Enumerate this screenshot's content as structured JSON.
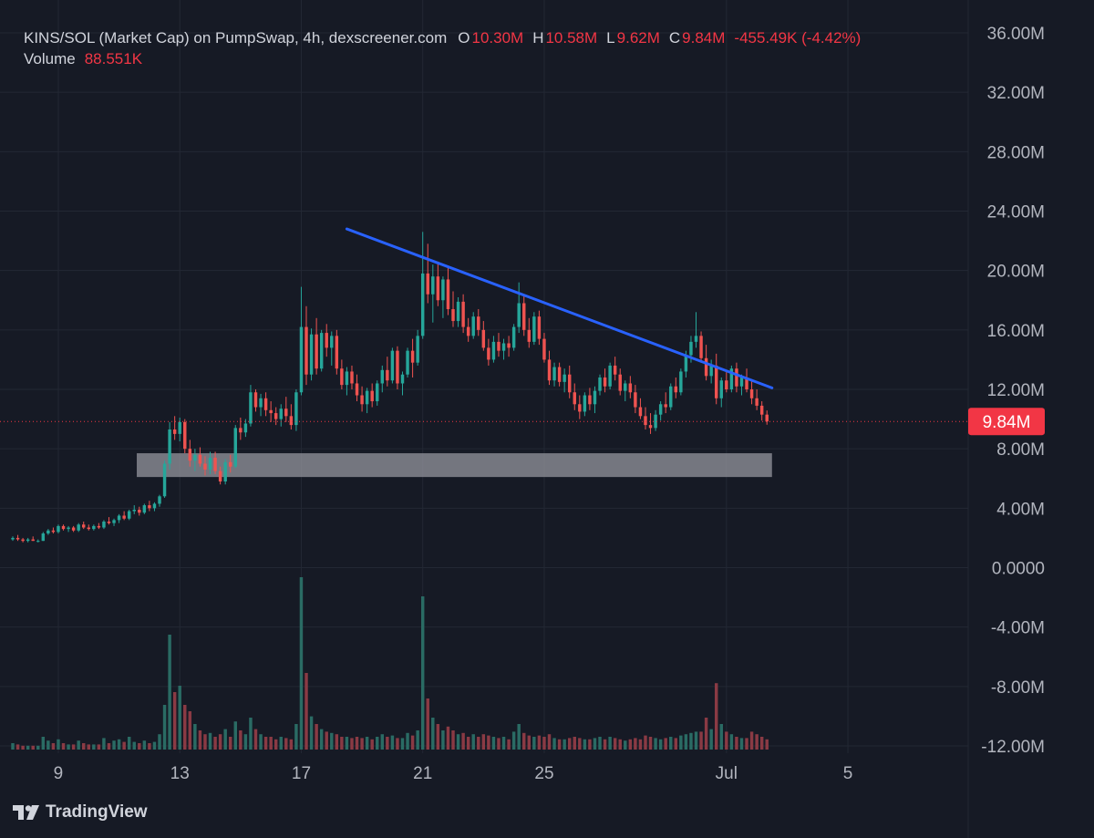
{
  "legend": {
    "pair": "KINS/SOL (Market Cap) on PumpSwap, 4h, dexscreener.com",
    "o_label": "O",
    "o_value": "10.30M",
    "h_label": "H",
    "h_value": "10.58M",
    "l_label": "L",
    "l_value": "9.62M",
    "c_label": "C",
    "c_value": "9.84M",
    "change": "-455.49K (-4.42%)",
    "volume_label": "Volume",
    "volume_value": "88.551K"
  },
  "brand": {
    "name": "TradingView",
    "logo_icon": "tradingview-logo-icon"
  },
  "colors": {
    "background": "#161a25",
    "grid": "#232834",
    "up": "#26a69a",
    "down": "#ef5350",
    "up_volume": "#2a6b64",
    "down_volume": "#8a3a44",
    "trendline": "#2962ff",
    "zone": "#8f9199",
    "last_price_badge": "#f23645",
    "axis_text": "#b2b5be"
  },
  "chart_data": {
    "type": "candlestick",
    "title": "KINS/SOL (Market Cap) on PumpSwap, 4h, dexscreener.com",
    "y_axis": {
      "range": [
        -12000000,
        36000000
      ],
      "tick_labels": [
        "36.00M",
        "32.00M",
        "28.00M",
        "24.00M",
        "20.00M",
        "16.00M",
        "12.00M",
        "8.00M",
        "4.00M",
        "0.0000",
        "-4.00M",
        "-8.00M",
        "-12.00M"
      ],
      "tick_values": [
        36,
        32,
        28,
        24,
        20,
        16,
        12,
        8,
        4,
        0,
        -4,
        -8,
        -12
      ],
      "unit": "M"
    },
    "x_axis": {
      "tick_labels": [
        "9",
        "13",
        "17",
        "21",
        "25",
        "Jul",
        "5"
      ],
      "tick_dates": [
        "2025-06-09",
        "2025-06-13",
        "2025-06-17",
        "2025-06-21",
        "2025-06-25",
        "2025-07-01",
        "2025-07-05"
      ],
      "range": [
        "2025-06-07T12:00",
        "2025-07-08T00:00"
      ]
    },
    "grid": true,
    "last_price": {
      "value": 9.84,
      "label": "9.84M"
    },
    "trendline": {
      "from": {
        "date": "2025-06-18T12:00",
        "value": 22.8
      },
      "to": {
        "date": "2025-07-02T12:00",
        "value": 12.1
      }
    },
    "support_zone": {
      "from_date": "2025-06-11T14:00",
      "to_date": "2025-07-02T12:00",
      "low": 6.1,
      "high": 7.7
    },
    "volume_scale_note": "Volume bars are scaled into the bottom pane (base at -12.00M).",
    "candles": {
      "start_date": "2025-06-07T12:00",
      "interval_hours": 4,
      "fields": [
        "open",
        "high",
        "low",
        "close",
        "volume_rel"
      ],
      "ohlcv": [
        [
          1.9,
          2.1,
          1.8,
          2.0,
          0.5
        ],
        [
          2.0,
          2.2,
          1.8,
          1.9,
          0.4
        ],
        [
          1.9,
          2.0,
          1.7,
          1.8,
          0.3
        ],
        [
          1.8,
          2.0,
          1.7,
          1.9,
          0.3
        ],
        [
          1.9,
          2.1,
          1.8,
          1.8,
          0.3
        ],
        [
          1.8,
          1.9,
          1.7,
          1.8,
          0.3
        ],
        [
          1.8,
          2.4,
          1.8,
          2.3,
          1.0
        ],
        [
          2.3,
          2.6,
          2.2,
          2.5,
          0.7
        ],
        [
          2.5,
          2.7,
          2.3,
          2.4,
          0.5
        ],
        [
          2.4,
          2.9,
          2.3,
          2.8,
          0.8
        ],
        [
          2.8,
          2.9,
          2.5,
          2.6,
          0.5
        ],
        [
          2.6,
          2.8,
          2.4,
          2.7,
          0.4
        ],
        [
          2.7,
          2.8,
          2.4,
          2.5,
          0.4
        ],
        [
          2.5,
          3.0,
          2.4,
          2.9,
          0.7
        ],
        [
          2.9,
          3.1,
          2.6,
          2.7,
          0.5
        ],
        [
          2.7,
          2.9,
          2.5,
          2.6,
          0.4
        ],
        [
          2.6,
          2.9,
          2.5,
          2.8,
          0.4
        ],
        [
          2.8,
          3.0,
          2.6,
          2.7,
          0.4
        ],
        [
          2.7,
          3.2,
          2.6,
          3.1,
          0.9
        ],
        [
          3.1,
          3.4,
          2.9,
          3.0,
          0.5
        ],
        [
          3.0,
          3.3,
          2.8,
          3.2,
          0.7
        ],
        [
          3.2,
          3.6,
          3.0,
          3.5,
          0.8
        ],
        [
          3.5,
          3.8,
          3.2,
          3.3,
          0.6
        ],
        [
          3.3,
          3.9,
          3.2,
          3.8,
          1.0
        ],
        [
          3.8,
          4.2,
          3.6,
          3.9,
          0.6
        ],
        [
          3.9,
          4.1,
          3.5,
          3.7,
          0.5
        ],
        [
          3.7,
          4.3,
          3.6,
          4.2,
          0.7
        ],
        [
          4.2,
          4.5,
          3.8,
          4.0,
          0.5
        ],
        [
          4.0,
          4.4,
          3.8,
          4.3,
          0.6
        ],
        [
          4.3,
          4.9,
          4.1,
          4.8,
          1.2
        ],
        [
          4.8,
          7.2,
          4.7,
          7.0,
          3.5
        ],
        [
          7.0,
          9.8,
          6.6,
          9.3,
          9.0
        ],
        [
          9.3,
          10.2,
          8.6,
          9.0,
          4.5
        ],
        [
          9.0,
          10.1,
          8.5,
          9.8,
          5.0
        ],
        [
          9.8,
          10.0,
          7.7,
          8.0,
          3.5
        ],
        [
          8.0,
          8.6,
          6.8,
          7.2,
          3.0
        ],
        [
          7.2,
          8.0,
          6.5,
          7.6,
          2.0
        ],
        [
          7.6,
          8.1,
          6.8,
          7.0,
          1.5
        ],
        [
          7.0,
          7.5,
          6.2,
          6.6,
          1.2
        ],
        [
          6.6,
          7.8,
          6.3,
          7.4,
          1.3
        ],
        [
          7.4,
          7.8,
          6.3,
          6.5,
          1.0
        ],
        [
          6.5,
          6.8,
          5.6,
          5.8,
          1.2
        ],
        [
          5.8,
          7.3,
          5.6,
          7.1,
          1.6
        ],
        [
          7.1,
          7.6,
          6.4,
          6.8,
          1.0
        ],
        [
          6.8,
          9.6,
          6.7,
          9.4,
          2.2
        ],
        [
          9.4,
          10.1,
          8.6,
          9.1,
          1.5
        ],
        [
          9.1,
          10.0,
          8.8,
          9.7,
          1.2
        ],
        [
          9.7,
          12.3,
          9.5,
          11.8,
          2.5
        ],
        [
          11.8,
          12.0,
          10.5,
          10.8,
          1.6
        ],
        [
          10.8,
          11.7,
          10.2,
          11.4,
          1.2
        ],
        [
          11.4,
          11.8,
          10.2,
          10.6,
          1.0
        ],
        [
          10.6,
          11.2,
          9.8,
          10.4,
          1.0
        ],
        [
          10.4,
          10.8,
          9.6,
          10.0,
          0.8
        ],
        [
          10.0,
          11.0,
          9.5,
          10.7,
          1.0
        ],
        [
          10.7,
          11.5,
          9.8,
          10.2,
          0.9
        ],
        [
          10.2,
          11.0,
          9.3,
          9.6,
          0.8
        ],
        [
          9.6,
          12.0,
          9.2,
          11.8,
          2.0
        ],
        [
          11.8,
          18.9,
          11.6,
          16.2,
          13.5
        ],
        [
          16.2,
          17.6,
          12.3,
          13.0,
          6.0
        ],
        [
          13.0,
          16.1,
          12.6,
          15.7,
          2.6
        ],
        [
          15.7,
          16.8,
          13.0,
          13.4,
          2.0
        ],
        [
          13.4,
          16.0,
          13.2,
          15.8,
          1.6
        ],
        [
          15.8,
          16.4,
          14.2,
          14.8,
          1.4
        ],
        [
          14.8,
          15.9,
          13.6,
          15.6,
          1.3
        ],
        [
          15.6,
          16.0,
          13.0,
          13.4,
          1.2
        ],
        [
          13.4,
          14.0,
          12.0,
          12.3,
          1.0
        ],
        [
          12.3,
          13.5,
          11.6,
          13.2,
          1.0
        ],
        [
          13.2,
          13.6,
          12.0,
          12.4,
          0.9
        ],
        [
          12.4,
          13.0,
          11.2,
          11.6,
          1.0
        ],
        [
          11.6,
          12.2,
          10.5,
          11.0,
          0.9
        ],
        [
          11.0,
          12.1,
          10.4,
          11.9,
          1.0
        ],
        [
          11.9,
          12.4,
          10.8,
          11.2,
          0.8
        ],
        [
          11.2,
          12.6,
          10.9,
          12.4,
          1.0
        ],
        [
          12.4,
          13.6,
          11.8,
          13.3,
          1.2
        ],
        [
          13.3,
          14.2,
          12.2,
          12.6,
          1.0
        ],
        [
          12.6,
          14.8,
          12.4,
          14.6,
          1.1
        ],
        [
          14.6,
          14.9,
          12.0,
          12.4,
          0.9
        ],
        [
          12.4,
          13.2,
          11.6,
          13.0,
          0.9
        ],
        [
          13.0,
          14.8,
          12.8,
          14.6,
          1.3
        ],
        [
          14.6,
          15.4,
          12.8,
          13.8,
          1.1
        ],
        [
          13.8,
          16.0,
          13.6,
          15.6,
          1.5
        ],
        [
          15.6,
          22.6,
          15.4,
          19.8,
          12.0
        ],
        [
          19.8,
          21.8,
          17.8,
          18.4,
          4.0
        ],
        [
          18.4,
          20.4,
          16.5,
          19.6,
          2.5
        ],
        [
          19.6,
          20.6,
          17.6,
          18.0,
          2.0
        ],
        [
          18.0,
          19.6,
          16.8,
          19.4,
          1.5
        ],
        [
          19.4,
          20.2,
          17.0,
          17.4,
          1.8
        ],
        [
          17.4,
          18.6,
          16.2,
          16.6,
          1.5
        ],
        [
          16.6,
          18.2,
          16.2,
          17.9,
          1.2
        ],
        [
          17.9,
          18.4,
          15.8,
          16.2,
          1.3
        ],
        [
          16.2,
          16.8,
          15.2,
          15.6,
          1.0
        ],
        [
          15.6,
          17.2,
          15.4,
          16.9,
          1.2
        ],
        [
          16.9,
          17.4,
          15.6,
          16.0,
          1.0
        ],
        [
          16.0,
          16.6,
          14.6,
          14.8,
          1.2
        ],
        [
          14.8,
          15.4,
          13.6,
          14.0,
          1.1
        ],
        [
          14.0,
          15.6,
          13.8,
          15.2,
          1.0
        ],
        [
          15.2,
          15.8,
          14.2,
          14.6,
          0.9
        ],
        [
          14.6,
          15.4,
          14.0,
          15.1,
          1.0
        ],
        [
          15.1,
          15.6,
          14.2,
          14.8,
          0.8
        ],
        [
          14.8,
          16.4,
          14.6,
          16.2,
          1.4
        ],
        [
          16.2,
          19.2,
          15.8,
          17.8,
          2.0
        ],
        [
          17.8,
          18.4,
          15.6,
          16.0,
          1.3
        ],
        [
          16.0,
          16.8,
          14.8,
          15.2,
          1.1
        ],
        [
          15.2,
          17.2,
          15.0,
          16.9,
          1.0
        ],
        [
          16.9,
          17.3,
          15.0,
          15.4,
          1.1
        ],
        [
          15.4,
          15.8,
          13.8,
          14.0,
          1.0
        ],
        [
          14.0,
          14.6,
          12.3,
          12.6,
          1.2
        ],
        [
          12.6,
          13.8,
          12.2,
          13.5,
          0.9
        ],
        [
          13.5,
          13.8,
          12.2,
          12.5,
          0.8
        ],
        [
          12.5,
          13.4,
          11.8,
          13.0,
          0.8
        ],
        [
          13.0,
          13.6,
          11.4,
          11.8,
          0.9
        ],
        [
          11.8,
          12.4,
          10.6,
          11.0,
          1.0
        ],
        [
          11.0,
          11.6,
          10.0,
          10.5,
          0.9
        ],
        [
          10.5,
          11.8,
          10.2,
          11.6,
          0.8
        ],
        [
          11.6,
          12.1,
          10.6,
          11.0,
          0.8
        ],
        [
          11.0,
          12.2,
          10.4,
          11.9,
          0.9
        ],
        [
          11.9,
          13.0,
          11.6,
          12.8,
          1.0
        ],
        [
          12.8,
          13.4,
          11.8,
          12.2,
          0.8
        ],
        [
          12.2,
          13.8,
          12.0,
          13.6,
          1.0
        ],
        [
          13.6,
          14.2,
          12.6,
          13.0,
          0.9
        ],
        [
          13.0,
          13.4,
          11.6,
          11.9,
          0.8
        ],
        [
          11.9,
          12.6,
          11.2,
          12.4,
          0.7
        ],
        [
          12.4,
          12.9,
          11.4,
          11.8,
          0.8
        ],
        [
          11.8,
          12.3,
          10.4,
          10.8,
          0.9
        ],
        [
          10.8,
          11.4,
          10.0,
          10.2,
          0.8
        ],
        [
          10.2,
          10.8,
          9.3,
          9.6,
          1.1
        ],
        [
          9.6,
          10.4,
          9.0,
          9.4,
          1.0
        ],
        [
          9.4,
          10.6,
          9.2,
          10.3,
          0.9
        ],
        [
          10.3,
          11.2,
          9.9,
          11.0,
          0.8
        ],
        [
          11.0,
          11.8,
          10.4,
          10.8,
          0.9
        ],
        [
          10.8,
          12.4,
          10.6,
          12.2,
          1.0
        ],
        [
          12.2,
          12.8,
          11.4,
          11.8,
          0.9
        ],
        [
          11.8,
          13.4,
          11.6,
          13.2,
          1.1
        ],
        [
          13.2,
          14.6,
          12.8,
          14.3,
          1.2
        ],
        [
          14.3,
          15.6,
          13.8,
          15.2,
          1.3
        ],
        [
          15.2,
          17.2,
          14.8,
          15.6,
          1.4
        ],
        [
          15.6,
          15.9,
          13.8,
          14.1,
          1.4
        ],
        [
          14.1,
          15.0,
          12.6,
          12.9,
          2.5
        ],
        [
          12.9,
          14.0,
          12.4,
          13.6,
          1.6
        ],
        [
          13.6,
          14.4,
          11.0,
          11.4,
          5.2
        ],
        [
          11.4,
          12.8,
          10.8,
          12.6,
          2.0
        ],
        [
          12.6,
          13.2,
          11.8,
          12.0,
          1.4
        ],
        [
          12.0,
          13.6,
          11.8,
          13.4,
          1.2
        ],
        [
          13.4,
          13.8,
          11.8,
          12.2,
          1.0
        ],
        [
          12.2,
          13.0,
          11.6,
          12.8,
          0.9
        ],
        [
          12.8,
          13.4,
          11.8,
          12.0,
          0.9
        ],
        [
          12.0,
          12.6,
          11.0,
          11.4,
          1.4
        ],
        [
          11.4,
          12.0,
          10.6,
          10.9,
          1.2
        ],
        [
          10.9,
          11.2,
          9.9,
          10.3,
          1.0
        ],
        [
          10.3,
          10.58,
          9.62,
          9.84,
          0.8
        ]
      ]
    }
  }
}
